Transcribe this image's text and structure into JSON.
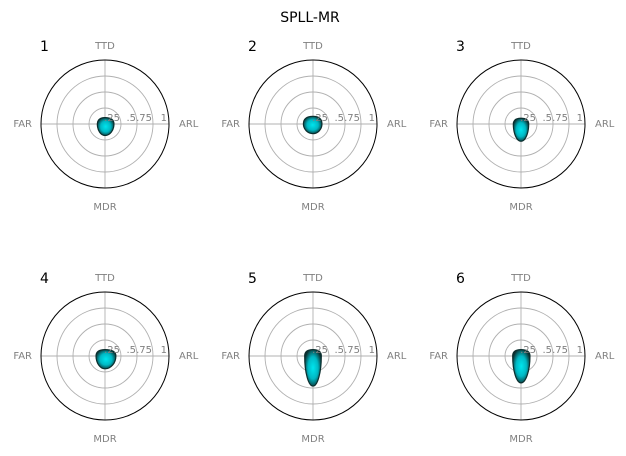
{
  "chart_data": {
    "type": "radar",
    "title": "SPLL-MR",
    "axes": [
      "TTD",
      "ARL",
      "MDR",
      "FAR"
    ],
    "radial_ticks": [
      ".25",
      ".5",
      ".75",
      "1"
    ],
    "rlim": [
      0,
      1
    ],
    "grid": true,
    "colors": {
      "fill_light": "#00e5ee",
      "fill_mid": "#00b8c4",
      "fill_dark": "#0b2e2e",
      "outline": "#000000",
      "grid": "#b0b0b0"
    },
    "panels": [
      {
        "label": "1",
        "values": {
          "TTD": 0.1,
          "ARL": 0.14,
          "MDR": 0.18,
          "FAR": 0.12
        }
      },
      {
        "label": "2",
        "values": {
          "TTD": 0.12,
          "ARL": 0.14,
          "MDR": 0.15,
          "FAR": 0.15
        }
      },
      {
        "label": "3",
        "values": {
          "TTD": 0.09,
          "ARL": 0.12,
          "MDR": 0.27,
          "FAR": 0.12
        }
      },
      {
        "label": "4",
        "values": {
          "TTD": 0.1,
          "ARL": 0.17,
          "MDR": 0.2,
          "FAR": 0.14
        }
      },
      {
        "label": "5",
        "values": {
          "TTD": 0.1,
          "ARL": 0.13,
          "MDR": 0.47,
          "FAR": 0.13
        }
      },
      {
        "label": "6",
        "values": {
          "TTD": 0.1,
          "ARL": 0.14,
          "MDR": 0.42,
          "FAR": 0.13
        }
      }
    ]
  }
}
